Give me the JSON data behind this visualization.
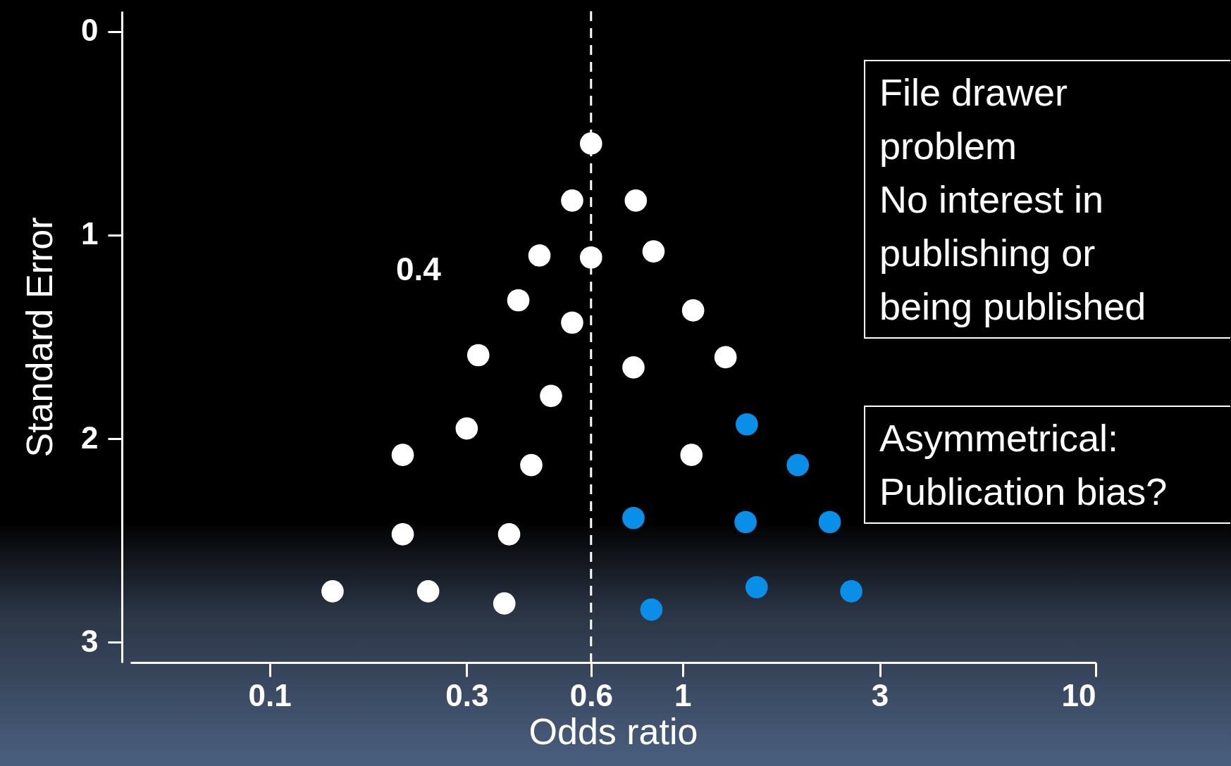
{
  "chart_data": {
    "type": "scatter",
    "xlabel": "Odds ratio",
    "ylabel": "Standard Error",
    "log": "x",
    "grid": false,
    "marker": "circle",
    "xlim": [
      0.046,
      10
    ],
    "xticks": [
      0.1,
      0.3,
      0.6,
      1,
      3,
      10
    ],
    "ylim": [
      3.1,
      -0.1
    ],
    "yticks": [
      0,
      1,
      2,
      3
    ],
    "series": [
      {
        "color": "#ffffff",
        "x": [
          0.6,
          0.54,
          0.77,
          0.45,
          0.6,
          0.85,
          0.4,
          0.54,
          1.06,
          0.32,
          0.76,
          1.27,
          0.48,
          0.3,
          1.05,
          0.21,
          0.43,
          0.21,
          0.38,
          0.142,
          0.242,
          0.37
        ],
        "values": [
          0.55,
          0.83,
          0.83,
          1.1,
          1.11,
          1.08,
          1.32,
          1.43,
          1.37,
          1.59,
          1.65,
          1.6,
          1.79,
          1.95,
          2.08,
          2.08,
          2.13,
          2.47,
          2.47,
          2.75,
          2.75,
          2.81
        ]
      },
      {
        "color": "#0a8fe8",
        "x": [
          1.43,
          1.9,
          0.76,
          1.42,
          2.27,
          1.51,
          2.56,
          0.84
        ],
        "values": [
          1.93,
          2.13,
          2.39,
          2.41,
          2.41,
          2.73,
          2.75,
          2.84
        ]
      }
    ],
    "ref_lines": [
      {
        "axis": "x",
        "value": 0.6,
        "color": "#ffffff",
        "line_style": "dashed"
      }
    ],
    "annotations": [
      "0.4",
      "File drawer\nproblem\nNo interest in\npublishing or\nbeing published",
      "Asymmetrical:\nPublication bias?"
    ]
  }
}
